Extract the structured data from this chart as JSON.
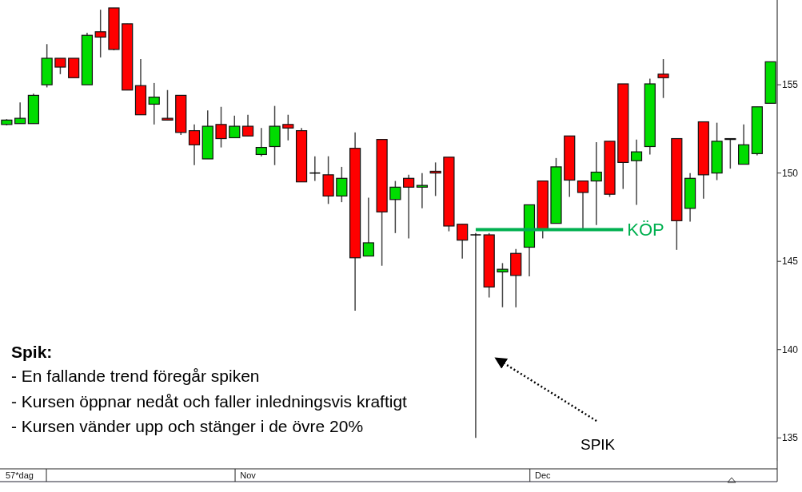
{
  "chart_data": {
    "type": "candlestick",
    "categories": [
      null,
      null,
      null,
      null,
      null,
      null,
      null,
      null,
      null,
      null,
      null,
      null,
      null,
      null,
      null,
      null,
      null,
      null,
      "Nov",
      null,
      null,
      null,
      null,
      null,
      null,
      null,
      null,
      null,
      null,
      null,
      null,
      null,
      null,
      null,
      null,
      null,
      null,
      null,
      null,
      null,
      "Dec",
      null,
      null,
      null,
      null,
      null,
      null,
      null,
      null,
      null,
      null,
      null,
      null,
      null,
      null,
      null,
      null,
      null
    ],
    "ohlc": [
      [
        152.75,
        153.05,
        152.7,
        153.0
      ],
      [
        152.8,
        154.0,
        152.8,
        153.1
      ],
      [
        152.8,
        154.5,
        152.8,
        154.4
      ],
      [
        155.0,
        157.3,
        154.85,
        156.5
      ],
      [
        156.5,
        156.5,
        155.6,
        156.0
      ],
      [
        156.5,
        156.5,
        155.4,
        155.4
      ],
      [
        155.0,
        157.95,
        155.0,
        157.8
      ],
      [
        158.0,
        159.25,
        156.55,
        157.7
      ],
      [
        159.35,
        159.35,
        156.95,
        157.0
      ],
      [
        158.45,
        158.45,
        154.7,
        154.7
      ],
      [
        154.95,
        156.45,
        153.3,
        153.3
      ],
      [
        153.9,
        155.1,
        152.75,
        154.3
      ],
      [
        153.1,
        154.7,
        153.0,
        153.0
      ],
      [
        154.4,
        154.4,
        152.15,
        152.3
      ],
      [
        152.4,
        152.75,
        150.45,
        151.6
      ],
      [
        150.8,
        153.55,
        150.8,
        152.65
      ],
      [
        152.75,
        153.75,
        151.45,
        151.95
      ],
      [
        152.0,
        153.25,
        152.0,
        152.65
      ],
      [
        152.65,
        153.3,
        152.1,
        152.1
      ],
      [
        151.05,
        152.55,
        150.95,
        151.45
      ],
      [
        151.5,
        153.8,
        150.45,
        152.65
      ],
      [
        152.75,
        153.3,
        151.85,
        152.55
      ],
      [
        152.4,
        152.55,
        149.5,
        149.5
      ],
      [
        150.0,
        150.95,
        149.55,
        150.0
      ],
      [
        149.9,
        150.95,
        148.25,
        148.7
      ],
      [
        148.7,
        150.35,
        148.35,
        149.7
      ],
      [
        151.4,
        152.3,
        142.2,
        145.2
      ],
      [
        145.3,
        148.6,
        145.3,
        146.05
      ],
      [
        151.9,
        151.9,
        144.75,
        147.8
      ],
      [
        148.5,
        149.55,
        146.6,
        149.2
      ],
      [
        149.7,
        149.9,
        146.3,
        149.2
      ],
      [
        149.2,
        150.0,
        148.0,
        149.3
      ],
      [
        150.1,
        150.6,
        148.7,
        150.0
      ],
      [
        150.9,
        150.9,
        146.7,
        147.0
      ],
      [
        147.1,
        147.1,
        145.15,
        146.2
      ],
      [
        146.5,
        146.6,
        135.0,
        146.5
      ],
      [
        146.5,
        146.6,
        142.95,
        143.55
      ],
      [
        144.4,
        144.9,
        142.4,
        144.55
      ],
      [
        145.45,
        145.7,
        142.4,
        144.2
      ],
      [
        145.8,
        148.2,
        144.15,
        148.2
      ],
      [
        149.55,
        149.55,
        146.3,
        146.8
      ],
      [
        147.15,
        150.85,
        147.15,
        150.35
      ],
      [
        152.1,
        152.1,
        148.65,
        149.6
      ],
      [
        149.55,
        149.55,
        146.8,
        148.9
      ],
      [
        149.55,
        151.75,
        147.05,
        150.05
      ],
      [
        151.8,
        151.8,
        148.65,
        148.8
      ],
      [
        155.05,
        155.05,
        149.1,
        150.6
      ],
      [
        150.7,
        151.9,
        148.2,
        151.2
      ],
      [
        151.5,
        155.35,
        151.05,
        155.05
      ],
      [
        155.6,
        156.45,
        154.25,
        155.4
      ],
      [
        151.95,
        151.95,
        145.65,
        147.3
      ],
      [
        148.0,
        150.0,
        147.25,
        149.7
      ],
      [
        152.9,
        152.9,
        148.55,
        149.9
      ],
      [
        150.0,
        152.85,
        149.6,
        151.8
      ],
      [
        151.95,
        151.95,
        150.25,
        151.9
      ],
      [
        150.5,
        152.75,
        150.5,
        151.6
      ],
      [
        151.1,
        153.75,
        151.0,
        153.75
      ],
      [
        153.95,
        156.3,
        153.95,
        156.3
      ]
    ],
    "colors": [
      "#00dd00",
      "#00dd00",
      "#00dd00",
      "#00dd00",
      "#ff0000",
      "#ff0000",
      "#00dd00",
      "#ff0000",
      "#ff0000",
      "#ff0000",
      "#ff0000",
      "#00dd00",
      "#ff0000",
      "#ff0000",
      "#ff0000",
      "#00dd00",
      "#ff0000",
      "#00dd00",
      "#ff0000",
      "#00dd00",
      "#00dd00",
      "#ff0000",
      "#ff0000",
      "#000000",
      "#ff0000",
      "#00dd00",
      "#ff0000",
      "#00dd00",
      "#ff0000",
      "#00dd00",
      "#ff0000",
      "#00dd00",
      "#ff0000",
      "#ff0000",
      "#ff0000",
      "#000000",
      "#ff0000",
      "#00dd00",
      "#ff0000",
      "#00dd00",
      "#ff0000",
      "#00dd00",
      "#ff0000",
      "#ff0000",
      "#00dd00",
      "#ff0000",
      "#ff0000",
      "#00dd00",
      "#00dd00",
      "#ff0000",
      "#ff0000",
      "#00dd00",
      "#ff0000",
      "#00dd00",
      "#ff0000",
      "#00dd00",
      "#00dd00",
      "#00dd00"
    ],
    "series": [
      {
        "name": "KÖP",
        "type": "line",
        "color": "#00b050",
        "values": [
          null,
          null,
          null,
          null,
          null,
          null,
          null,
          null,
          null,
          null,
          null,
          null,
          null,
          null,
          null,
          null,
          null,
          null,
          null,
          null,
          null,
          null,
          null,
          null,
          null,
          null,
          null,
          null,
          null,
          null,
          null,
          null,
          null,
          null,
          null,
          146.8,
          146.8,
          146.8,
          146.8,
          146.8,
          146.8,
          146.8,
          146.8,
          146.8,
          146.8,
          146.8,
          146.8,
          null,
          null,
          null,
          null,
          null,
          null,
          null,
          null,
          null,
          null,
          null
        ]
      }
    ],
    "ylim": [
      133.7,
      159.8
    ],
    "yticks": [
      135,
      140,
      145,
      150,
      155
    ],
    "annotations": [
      "Spik:",
      "- En fallande trend föregår spiken",
      "- Kursen öppnar nedåt och faller inledningsvis kraftigt",
      "- Kursen vänder upp och stänger i de övre 20%",
      "SPIK",
      "57*dag"
    ]
  }
}
